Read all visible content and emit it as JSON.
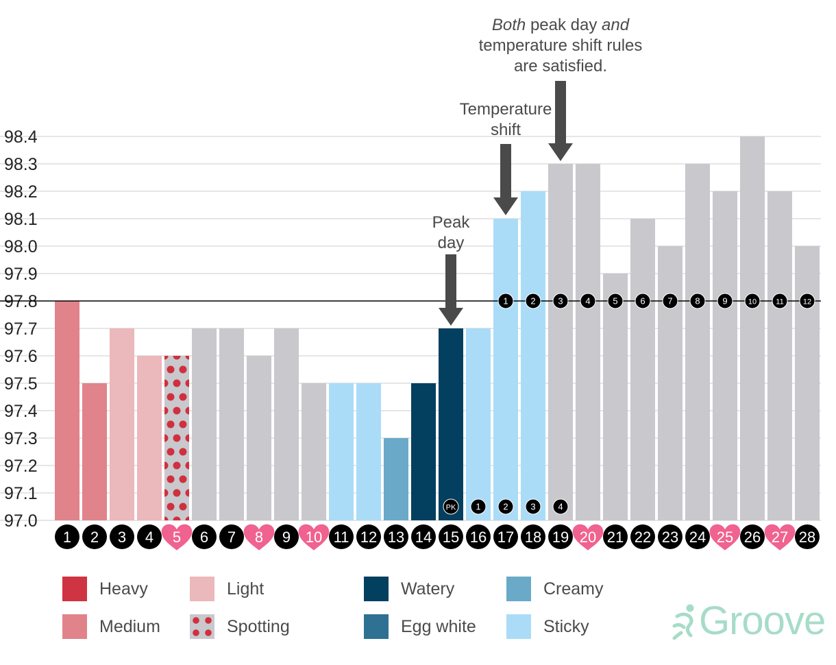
{
  "chart_data": {
    "type": "bar",
    "categories": [
      "1",
      "2",
      "3",
      "4",
      "5",
      "6",
      "7",
      "8",
      "9",
      "10",
      "11",
      "12",
      "13",
      "14",
      "15",
      "16",
      "17",
      "18",
      "19",
      "20",
      "21",
      "22",
      "23",
      "24",
      "25",
      "26",
      "27",
      "28"
    ],
    "values": [
      97.8,
      97.5,
      97.7,
      97.6,
      97.6,
      97.7,
      97.7,
      97.6,
      97.7,
      97.5,
      97.5,
      97.5,
      97.3,
      97.5,
      97.7,
      97.7,
      98.1,
      98.2,
      98.3,
      98.3,
      97.9,
      98.1,
      98.0,
      98.3,
      98.2,
      98.4,
      98.2,
      98.0
    ],
    "bar_types": [
      "medium",
      "medium",
      "light",
      "light",
      "spotting",
      "none",
      "none",
      "none",
      "none",
      "none",
      "sticky",
      "sticky",
      "creamy",
      "watery",
      "watery",
      "sticky",
      "sticky",
      "sticky",
      "none",
      "none",
      "none",
      "none",
      "none",
      "none",
      "none",
      "none",
      "none",
      "none"
    ],
    "intercourse_days": [
      "5",
      "8",
      "10",
      "20",
      "25",
      "27"
    ],
    "ylim": [
      97.0,
      98.4
    ],
    "yticks": [
      "97.0",
      "97.1",
      "97.2",
      "97.3",
      "97.4",
      "97.5",
      "97.6",
      "97.7",
      "97.8",
      "97.9",
      "98.0",
      "98.1",
      "98.2",
      "98.3",
      "98.4"
    ],
    "coverline": 97.8,
    "shift_markers": [
      {
        "day": "17",
        "label": "1"
      },
      {
        "day": "18",
        "label": "2"
      },
      {
        "day": "19",
        "label": "3"
      },
      {
        "day": "20",
        "label": "4"
      },
      {
        "day": "21",
        "label": "5"
      },
      {
        "day": "22",
        "label": "6"
      },
      {
        "day": "23",
        "label": "7"
      },
      {
        "day": "24",
        "label": "8"
      },
      {
        "day": "25",
        "label": "9"
      },
      {
        "day": "26",
        "label": "10"
      },
      {
        "day": "27",
        "label": "11"
      },
      {
        "day": "28",
        "label": "12"
      }
    ],
    "peak_markers": [
      {
        "day": "15",
        "label": "PK"
      },
      {
        "day": "16",
        "label": "1"
      },
      {
        "day": "17",
        "label": "2"
      },
      {
        "day": "18",
        "label": "3"
      },
      {
        "day": "19",
        "label": "4"
      }
    ],
    "annotations": [
      {
        "day": "15",
        "lines": [
          "Peak",
          "day"
        ]
      },
      {
        "day": "17",
        "lines": [
          "Temperature",
          "shift"
        ]
      },
      {
        "day": "19",
        "lines": [
          "Both peak day and",
          "temperature shift rules",
          "are satisfied."
        ],
        "italic_words": [
          "Both",
          "and"
        ]
      }
    ],
    "colors": {
      "heavy": "#cf3442",
      "medium": "#e0838b",
      "light": "#ebb8bc",
      "spotting": "#d0303e",
      "watery": "#033f5f",
      "egg_white": "#2f7193",
      "creamy": "#6aa9c8",
      "sticky": "#aadcf8",
      "none": "#c8c8cd",
      "heart": "#f0628f",
      "arrow": "#4a4a4a",
      "grid": "#d6d6d6"
    }
  },
  "legend": {
    "heavy": "Heavy",
    "medium": "Medium",
    "light": "Light",
    "spotting": "Spotting",
    "watery": "Watery",
    "egg_white": "Egg white",
    "creamy": "Creamy",
    "sticky": "Sticky"
  },
  "brand": {
    "name": "Groove"
  }
}
